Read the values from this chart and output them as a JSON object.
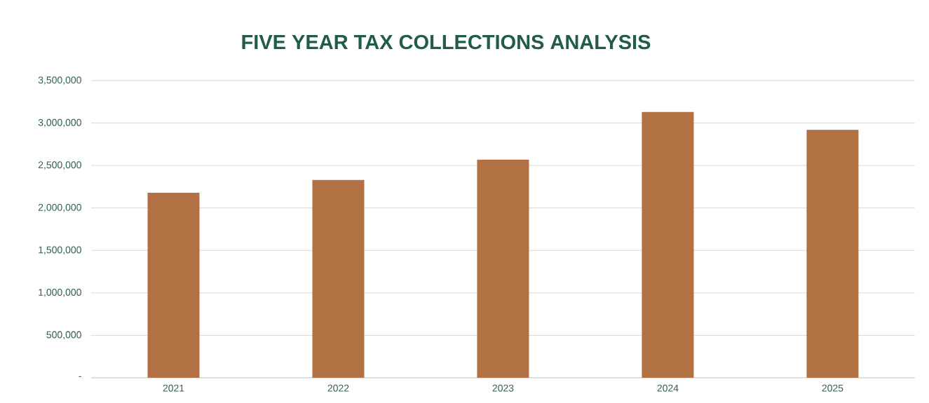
{
  "chart_data": {
    "type": "bar",
    "title": "FIVE YEAR TAX COLLECTIONS ANALYSIS",
    "categories": [
      "2021",
      "2022",
      "2023",
      "2024",
      "2025"
    ],
    "values": [
      2180000,
      2330000,
      2570000,
      3130000,
      2920000
    ],
    "color": "#b27142",
    "ylim": [
      0,
      3500000
    ],
    "yticks": [
      {
        "value": 0,
        "label": "-"
      },
      {
        "value": 500000,
        "label": "500,000"
      },
      {
        "value": 1000000,
        "label": "1,000,000"
      },
      {
        "value": 1500000,
        "label": "1,500,000"
      },
      {
        "value": 2000000,
        "label": "2,000,000"
      },
      {
        "value": 2500000,
        "label": "2,500,000"
      },
      {
        "value": 3000000,
        "label": "3,000,000"
      },
      {
        "value": 3500000,
        "label": "3,500,000"
      }
    ],
    "grid": "y"
  }
}
